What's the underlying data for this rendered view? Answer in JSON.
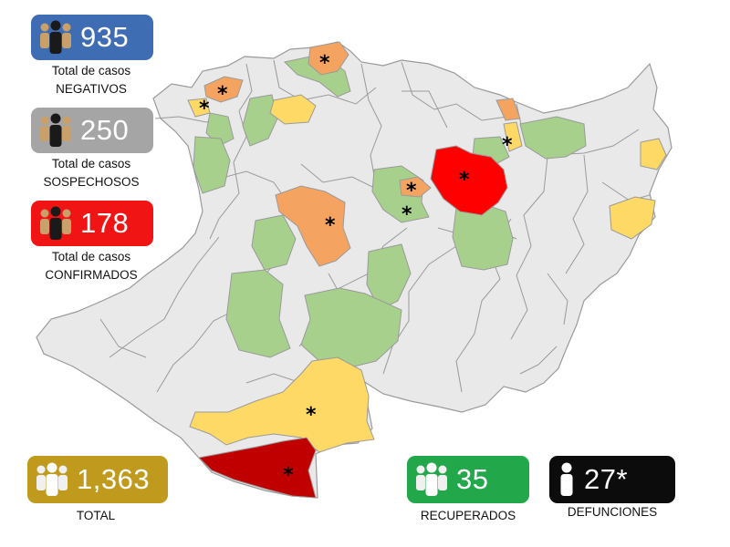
{
  "stats": {
    "negativos": {
      "value": "935",
      "caption1": "Total de casos",
      "caption2": "NEGATIVOS",
      "color": "#3f6db3",
      "text_color": "#ffffff"
    },
    "sospechosos": {
      "value": "250",
      "caption1": "Total de casos",
      "caption2": "SOSPECHOSOS",
      "color": "#a5a5a5",
      "text_color": "#ffffff"
    },
    "confirmados": {
      "value": "178",
      "caption1": "Total de casos",
      "caption2": "CONFIRMADOS",
      "color": "#f01414",
      "text_color": "#ffffff"
    },
    "total": {
      "value": "1,363",
      "caption": "TOTAL",
      "color": "#c09a1c",
      "text_color": "#ffffff"
    },
    "recuperados": {
      "value": "35",
      "caption": "RECUPERADOS",
      "color": "#22a84a",
      "text_color": "#ffffff"
    },
    "defunciones": {
      "value": "27*",
      "caption": "DEFUNCIONES",
      "color": "#0c0c0c",
      "text_color": "#ffffff"
    }
  },
  "map": {
    "marker_symbol": "*",
    "colors": {
      "base": "#e9e9e9",
      "border": "#9a9a9a",
      "green": "#a8d08d",
      "yellow": "#ffd966",
      "orange": "#f4a460",
      "red": "#ff0000",
      "dark_red": "#c00000"
    },
    "icons": [
      "people-group-icon",
      "person-icon"
    ]
  }
}
